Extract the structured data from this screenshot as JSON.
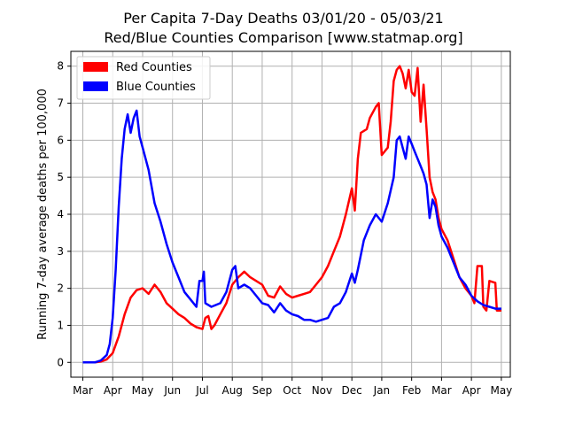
{
  "chart_data": {
    "type": "line",
    "title": "Per Capita 7-Day Deaths 03/01/20 - 05/03/21",
    "subtitle": "Red/Blue Counties Comparison  [www.statmap.org]",
    "xlabel": "",
    "ylabel": "Running 7-day average deaths per 100,000",
    "ylim": [
      -0.4,
      8.4
    ],
    "yticks": [
      0,
      1,
      2,
      3,
      4,
      5,
      6,
      7,
      8
    ],
    "x_range_months": [
      -0.4,
      14.3
    ],
    "x_ticks": [
      {
        "label": "Mar",
        "month": 0
      },
      {
        "label": "Apr",
        "month": 1
      },
      {
        "label": "May",
        "month": 2
      },
      {
        "label": "Jun",
        "month": 3
      },
      {
        "label": "Jul",
        "month": 4
      },
      {
        "label": "Aug",
        "month": 5
      },
      {
        "label": "Sep",
        "month": 6
      },
      {
        "label": "Oct",
        "month": 7
      },
      {
        "label": "Nov",
        "month": 8
      },
      {
        "label": "Dec",
        "month": 9
      },
      {
        "label": "Jan",
        "month": 10
      },
      {
        "label": "Feb",
        "month": 11
      },
      {
        "label": "Mar",
        "month": 12
      },
      {
        "label": "Apr",
        "month": 13
      },
      {
        "label": "May",
        "month": 14
      }
    ],
    "grid": true,
    "legend_position": "top-left",
    "series": [
      {
        "name": "Red Counties",
        "color": "#ff0000",
        "points": [
          [
            0,
            0
          ],
          [
            0.4,
            0
          ],
          [
            0.6,
            0.02
          ],
          [
            0.8,
            0.08
          ],
          [
            1,
            0.25
          ],
          [
            1.2,
            0.7
          ],
          [
            1.4,
            1.3
          ],
          [
            1.6,
            1.75
          ],
          [
            1.8,
            1.95
          ],
          [
            2,
            2.0
          ],
          [
            2.2,
            1.85
          ],
          [
            2.4,
            2.1
          ],
          [
            2.6,
            1.9
          ],
          [
            2.8,
            1.6
          ],
          [
            3,
            1.45
          ],
          [
            3.2,
            1.3
          ],
          [
            3.4,
            1.2
          ],
          [
            3.6,
            1.05
          ],
          [
            3.8,
            0.95
          ],
          [
            4,
            0.9
          ],
          [
            4.1,
            1.2
          ],
          [
            4.2,
            1.25
          ],
          [
            4.3,
            0.9
          ],
          [
            4.4,
            1.0
          ],
          [
            4.6,
            1.3
          ],
          [
            4.8,
            1.6
          ],
          [
            5,
            2.1
          ],
          [
            5.2,
            2.3
          ],
          [
            5.4,
            2.45
          ],
          [
            5.6,
            2.3
          ],
          [
            5.8,
            2.2
          ],
          [
            6,
            2.1
          ],
          [
            6.2,
            1.8
          ],
          [
            6.4,
            1.75
          ],
          [
            6.6,
            2.05
          ],
          [
            6.8,
            1.85
          ],
          [
            7,
            1.75
          ],
          [
            7.2,
            1.8
          ],
          [
            7.4,
            1.85
          ],
          [
            7.6,
            1.9
          ],
          [
            7.8,
            2.1
          ],
          [
            8,
            2.3
          ],
          [
            8.2,
            2.6
          ],
          [
            8.4,
            3.0
          ],
          [
            8.6,
            3.4
          ],
          [
            8.8,
            4.0
          ],
          [
            9,
            4.7
          ],
          [
            9.1,
            4.1
          ],
          [
            9.2,
            5.5
          ],
          [
            9.3,
            6.2
          ],
          [
            9.5,
            6.3
          ],
          [
            9.6,
            6.6
          ],
          [
            9.8,
            6.9
          ],
          [
            9.9,
            7.0
          ],
          [
            10,
            5.6
          ],
          [
            10.2,
            5.8
          ],
          [
            10.3,
            6.5
          ],
          [
            10.4,
            7.6
          ],
          [
            10.5,
            7.9
          ],
          [
            10.6,
            8.0
          ],
          [
            10.7,
            7.8
          ],
          [
            10.8,
            7.4
          ],
          [
            10.9,
            7.9
          ],
          [
            11,
            7.3
          ],
          [
            11.1,
            7.2
          ],
          [
            11.2,
            7.95
          ],
          [
            11.3,
            6.5
          ],
          [
            11.4,
            7.5
          ],
          [
            11.5,
            6.3
          ],
          [
            11.6,
            5.0
          ],
          [
            11.7,
            4.6
          ],
          [
            11.8,
            4.4
          ],
          [
            11.9,
            3.9
          ],
          [
            12,
            3.6
          ],
          [
            12.2,
            3.3
          ],
          [
            12.4,
            2.8
          ],
          [
            12.6,
            2.3
          ],
          [
            12.8,
            2.0
          ],
          [
            13,
            1.8
          ],
          [
            13.1,
            1.6
          ],
          [
            13.2,
            2.6
          ],
          [
            13.35,
            2.6
          ],
          [
            13.4,
            1.5
          ],
          [
            13.5,
            1.4
          ],
          [
            13.6,
            2.2
          ],
          [
            13.8,
            2.15
          ],
          [
            13.85,
            1.4
          ],
          [
            14,
            1.4
          ]
        ]
      },
      {
        "name": "Blue Counties",
        "color": "#0000ff",
        "points": [
          [
            0,
            0
          ],
          [
            0.4,
            0
          ],
          [
            0.6,
            0.05
          ],
          [
            0.8,
            0.2
          ],
          [
            0.9,
            0.5
          ],
          [
            1,
            1.2
          ],
          [
            1.1,
            2.5
          ],
          [
            1.2,
            4.2
          ],
          [
            1.3,
            5.5
          ],
          [
            1.4,
            6.3
          ],
          [
            1.5,
            6.7
          ],
          [
            1.6,
            6.2
          ],
          [
            1.7,
            6.6
          ],
          [
            1.8,
            6.8
          ],
          [
            1.9,
            6.1
          ],
          [
            2,
            5.8
          ],
          [
            2.2,
            5.2
          ],
          [
            2.4,
            4.3
          ],
          [
            2.6,
            3.8
          ],
          [
            2.8,
            3.2
          ],
          [
            3,
            2.7
          ],
          [
            3.2,
            2.3
          ],
          [
            3.4,
            1.9
          ],
          [
            3.6,
            1.7
          ],
          [
            3.8,
            1.5
          ],
          [
            3.9,
            2.2
          ],
          [
            4,
            2.2
          ],
          [
            4.05,
            2.45
          ],
          [
            4.1,
            1.6
          ],
          [
            4.3,
            1.5
          ],
          [
            4.6,
            1.6
          ],
          [
            4.8,
            1.9
          ],
          [
            5,
            2.5
          ],
          [
            5.1,
            2.6
          ],
          [
            5.2,
            2.0
          ],
          [
            5.4,
            2.1
          ],
          [
            5.6,
            2.0
          ],
          [
            5.8,
            1.8
          ],
          [
            6,
            1.6
          ],
          [
            6.2,
            1.55
          ],
          [
            6.4,
            1.35
          ],
          [
            6.6,
            1.6
          ],
          [
            6.8,
            1.4
          ],
          [
            7,
            1.3
          ],
          [
            7.2,
            1.25
          ],
          [
            7.4,
            1.15
          ],
          [
            7.6,
            1.15
          ],
          [
            7.8,
            1.1
          ],
          [
            8,
            1.15
          ],
          [
            8.2,
            1.2
          ],
          [
            8.4,
            1.5
          ],
          [
            8.6,
            1.6
          ],
          [
            8.8,
            1.9
          ],
          [
            9,
            2.4
          ],
          [
            9.1,
            2.15
          ],
          [
            9.2,
            2.5
          ],
          [
            9.4,
            3.3
          ],
          [
            9.6,
            3.7
          ],
          [
            9.8,
            4.0
          ],
          [
            10,
            3.8
          ],
          [
            10.2,
            4.3
          ],
          [
            10.4,
            5.0
          ],
          [
            10.5,
            6.0
          ],
          [
            10.6,
            6.1
          ],
          [
            10.7,
            5.8
          ],
          [
            10.8,
            5.5
          ],
          [
            10.9,
            6.1
          ],
          [
            11,
            5.9
          ],
          [
            11.1,
            5.7
          ],
          [
            11.2,
            5.5
          ],
          [
            11.3,
            5.3
          ],
          [
            11.4,
            5.1
          ],
          [
            11.5,
            4.8
          ],
          [
            11.6,
            3.9
          ],
          [
            11.7,
            4.4
          ],
          [
            11.8,
            4.2
          ],
          [
            11.9,
            3.7
          ],
          [
            12,
            3.4
          ],
          [
            12.2,
            3.1
          ],
          [
            12.4,
            2.7
          ],
          [
            12.6,
            2.3
          ],
          [
            12.8,
            2.1
          ],
          [
            13,
            1.8
          ],
          [
            13.2,
            1.65
          ],
          [
            13.4,
            1.55
          ],
          [
            13.6,
            1.5
          ],
          [
            13.8,
            1.45
          ],
          [
            14,
            1.45
          ]
        ]
      }
    ]
  }
}
